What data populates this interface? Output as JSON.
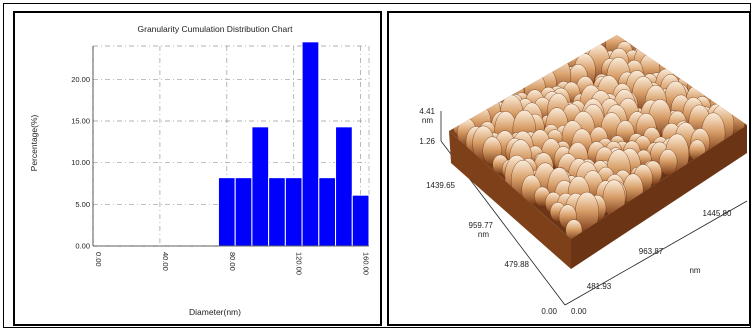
{
  "chart_data": [
    {
      "type": "bar",
      "title": "Granularity Cumulation Distribution  Chart",
      "xlabel": "Diameter(nm)",
      "ylabel": "Percentage(%)",
      "xlim": [
        0,
        165
      ],
      "ylim": [
        0,
        24
      ],
      "grid": true,
      "x_ticks": [
        "0.00",
        "40.00",
        "80.00",
        "120.00",
        "160.00"
      ],
      "y_ticks": [
        "0.00",
        "5.00",
        "10.00",
        "15.00",
        "20.00"
      ],
      "bar_color": "#0000ff",
      "bins": [
        {
          "x0": 75,
          "x1": 85,
          "value": 8.2
        },
        {
          "x0": 85,
          "x1": 95,
          "value": 8.2
        },
        {
          "x0": 95,
          "x1": 105,
          "value": 14.3
        },
        {
          "x0": 105,
          "x1": 115,
          "value": 8.2
        },
        {
          "x0": 115,
          "x1": 125,
          "value": 8.2
        },
        {
          "x0": 125,
          "x1": 135,
          "value": 24.5
        },
        {
          "x0": 135,
          "x1": 145,
          "value": 8.2
        },
        {
          "x0": 145,
          "x1": 155,
          "value": 14.3
        },
        {
          "x0": 155,
          "x1": 165,
          "value": 6.1
        }
      ]
    }
  ],
  "afm_image": {
    "z_max": "4.41",
    "z_unit": "nm",
    "z_ref": "1.26",
    "y_ticks": [
      "1439.65",
      "959.77",
      "479.88"
    ],
    "y_unit": "nm",
    "x_ticks": [
      "1445.80",
      "963.87",
      "481.93"
    ],
    "x_unit": "nm",
    "origin_left": "0.00",
    "origin_right": "0.00",
    "colors": {
      "light": "#f7e4cc",
      "mid": "#c98a4f",
      "dark": "#5a2a10"
    }
  }
}
